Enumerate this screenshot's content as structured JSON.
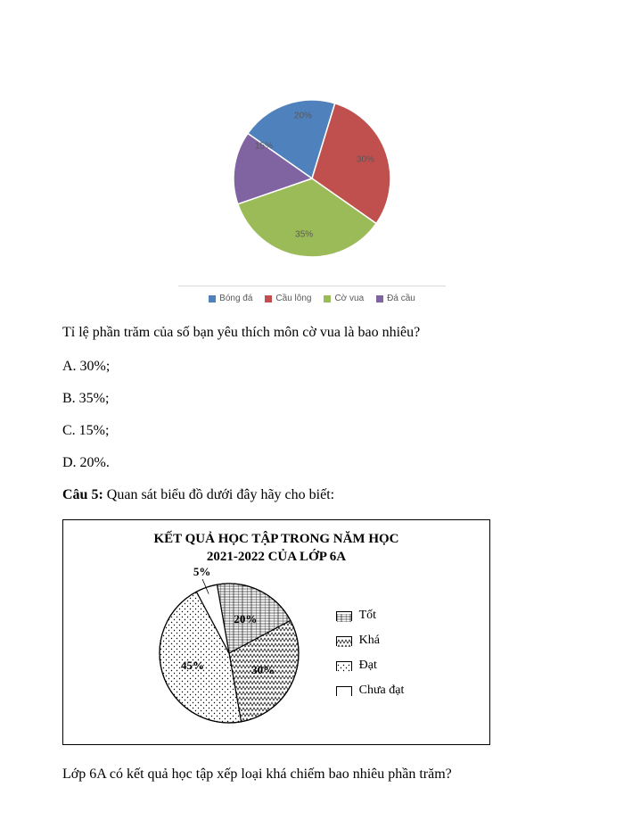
{
  "chart1": {
    "type": "pie",
    "background_color": "#ffffff",
    "label_color": "#595959",
    "label_fontsize": 10,
    "slices": [
      {
        "name": "Bóng đá",
        "value": 20,
        "label": "20%",
        "color": "#4f81bd"
      },
      {
        "name": "Cầu lông",
        "value": 30,
        "label": "30%",
        "color": "#c0504d"
      },
      {
        "name": "Cờ vua",
        "value": 35,
        "label": "35%",
        "color": "#9bbb59"
      },
      {
        "name": "Đá cầu",
        "value": 15,
        "label": "15%",
        "color": "#8064a2"
      }
    ],
    "legend": [
      {
        "label": "Bóng đá",
        "color": "#4f81bd"
      },
      {
        "label": "Cầu lông",
        "color": "#c0504d"
      },
      {
        "label": "Cờ vua",
        "color": "#9bbb59"
      },
      {
        "label": "Đá cầu",
        "color": "#8064a2"
      }
    ],
    "rotation_start_deg": -55
  },
  "q4": {
    "text": "Tỉ lệ phần trăm của số bạn yêu thích môn cờ vua là bao nhiêu?",
    "options": {
      "A": "A. 30%;",
      "B": "B. 35%;",
      "C": "C. 15%;",
      "D": "D. 20%."
    }
  },
  "q5": {
    "heading_bold": "Câu 5:",
    "heading_rest": " Quan sát biểu đồ dưới đây hãy cho biết:",
    "followup": "Lớp 6A có kết quả học tập  xếp loại khá chiếm bao nhiêu phần trăm?"
  },
  "chart2": {
    "type": "pie",
    "title_line1": "KẾT QUẢ HỌC TẬP TRONG NĂM HỌC",
    "title_line2": "2021-2022 CỦA LỚP 6A",
    "title_fontsize": 15,
    "outline_color": "#000000",
    "slices": [
      {
        "name": "Tốt",
        "value": 20,
        "label": "20%",
        "pattern": "brick"
      },
      {
        "name": "Khá",
        "value": 30,
        "label": "30%",
        "pattern": "zigzag"
      },
      {
        "name": "Đạt",
        "value": 45,
        "label": "45%",
        "pattern": "dots"
      },
      {
        "name": "Chưa đạt",
        "value": 5,
        "label": "5%",
        "pattern": "solidwhite"
      }
    ],
    "legend": [
      {
        "label": "Tốt",
        "pattern": "brick"
      },
      {
        "label": "Khá",
        "pattern": "zigzag"
      },
      {
        "label": "Đạt",
        "pattern": "dots"
      },
      {
        "label": "Chưa đạt",
        "pattern": "solidwhite"
      }
    ],
    "rotation_start_deg": -10,
    "label_fontsize": 13
  }
}
